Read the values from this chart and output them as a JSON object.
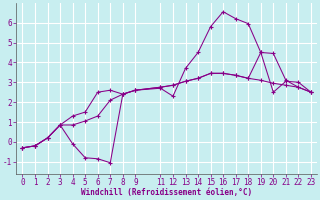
{
  "xlabel": "Windchill (Refroidissement éolien,°C)",
  "background_color": "#c8eef0",
  "grid_color": "#ffffff",
  "line_color": "#880088",
  "xlim": [
    -0.5,
    23.5
  ],
  "ylim": [
    -1.6,
    7.0
  ],
  "xtick_vals": [
    0,
    1,
    2,
    3,
    4,
    5,
    6,
    7,
    8,
    9,
    11,
    12,
    13,
    14,
    15,
    16,
    17,
    18,
    19,
    20,
    21,
    22,
    23
  ],
  "ytick_vals": [
    -1,
    0,
    1,
    2,
    3,
    4,
    5,
    6
  ],
  "series1_x": [
    0,
    1,
    2,
    3,
    4,
    5,
    6,
    7,
    8,
    9,
    11,
    12,
    13,
    14,
    15,
    16,
    17,
    18,
    19,
    20,
    21,
    22,
    23
  ],
  "series1_y": [
    -0.3,
    -0.2,
    0.2,
    0.85,
    0.85,
    1.05,
    1.3,
    2.1,
    2.4,
    2.6,
    2.75,
    2.85,
    3.05,
    3.2,
    3.45,
    3.45,
    3.35,
    3.2,
    3.1,
    2.95,
    2.85,
    2.75,
    2.5
  ],
  "series2_x": [
    0,
    1,
    2,
    3,
    4,
    5,
    6,
    7,
    8,
    9,
    11,
    12,
    13,
    14,
    15,
    16,
    17,
    18,
    19,
    20,
    21,
    22,
    23
  ],
  "series2_y": [
    -0.3,
    -0.2,
    0.2,
    0.85,
    -0.1,
    -0.8,
    -0.85,
    -1.05,
    2.4,
    2.6,
    2.7,
    2.3,
    3.7,
    4.5,
    5.8,
    6.55,
    6.2,
    5.95,
    4.5,
    2.5,
    3.05,
    3.0,
    2.5
  ],
  "series3_x": [
    0,
    1,
    2,
    3,
    4,
    5,
    6,
    7,
    8,
    9,
    11,
    12,
    13,
    14,
    15,
    16,
    17,
    18,
    19,
    20,
    21,
    22,
    23
  ],
  "series3_y": [
    -0.3,
    -0.2,
    0.2,
    0.85,
    1.3,
    1.5,
    2.5,
    2.6,
    2.4,
    2.6,
    2.75,
    2.85,
    3.05,
    3.2,
    3.45,
    3.45,
    3.35,
    3.2,
    4.5,
    4.45,
    3.1,
    2.75,
    2.5
  ],
  "tick_fontsize": 5.5,
  "label_fontsize": 5.5
}
